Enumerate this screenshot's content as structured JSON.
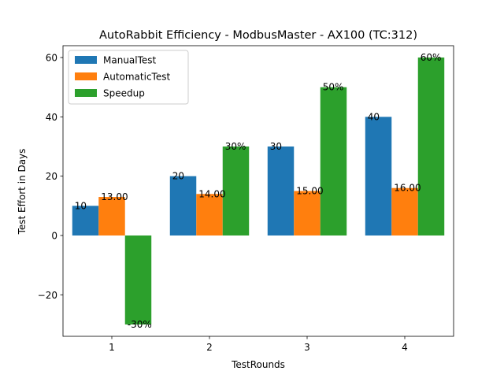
{
  "chart_data": {
    "type": "bar",
    "title": "AutoRabbit Efficiency - ModbusMaster - AX100 (TC:312)",
    "xlabel": "TestRounds",
    "ylabel": "Test Effort in Days",
    "categories": [
      "1",
      "2",
      "3",
      "4"
    ],
    "series": [
      {
        "name": "ManualTest",
        "color": "#1f77b4",
        "values": [
          10,
          20,
          30,
          40
        ],
        "labels": [
          "10",
          "20",
          "30",
          "40"
        ]
      },
      {
        "name": "AutomaticTest",
        "color": "#ff7f0e",
        "values": [
          13,
          14,
          15,
          16
        ],
        "labels": [
          "13.00",
          "14.00",
          "15.00",
          "16.00"
        ]
      },
      {
        "name": "Speedup",
        "color": "#2ca02c",
        "values": [
          -30,
          30,
          50,
          60
        ],
        "labels": [
          "-30%",
          "30%",
          "50%",
          "60%"
        ]
      }
    ],
    "ylim": [
      -34,
      64
    ],
    "yticks": [
      -20,
      0,
      20,
      40,
      60
    ],
    "ytick_labels": [
      "−20",
      "0",
      "20",
      "40",
      "60"
    ],
    "grid": false,
    "legend_position": "top-left"
  }
}
